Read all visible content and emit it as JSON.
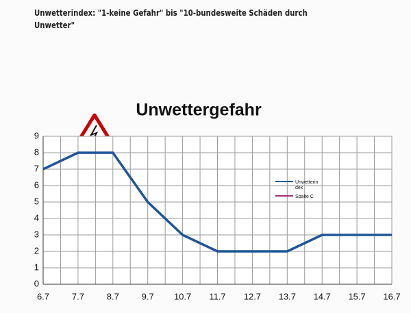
{
  "header": {
    "note": "Unwetterindex: \"1-keine Gefahr\" bis \"10-bundesweite Schäden durch Unwetter\""
  },
  "chart_data": {
    "type": "line",
    "title": "Unwettergefahr",
    "categories": [
      "6.7",
      "7.7",
      "8.7",
      "9.7",
      "10.7",
      "11.7",
      "12.7",
      "13.7",
      "14.7",
      "15.7",
      "16.7"
    ],
    "series": [
      {
        "name": "Unwetterin dex",
        "color": "#1f5597",
        "values": [
          7,
          8,
          8,
          5,
          3,
          2,
          2,
          2,
          3,
          3,
          3
        ]
      },
      {
        "name": "Spalte C",
        "color": "#a0306a",
        "values": [
          null,
          null,
          null,
          null,
          null,
          null,
          null,
          null,
          null,
          null,
          null
        ]
      }
    ],
    "ylim": [
      0,
      9
    ],
    "yticks": [
      0,
      1,
      2,
      3,
      4,
      5,
      6,
      7,
      8,
      9
    ],
    "grid": true,
    "legend": "right"
  }
}
